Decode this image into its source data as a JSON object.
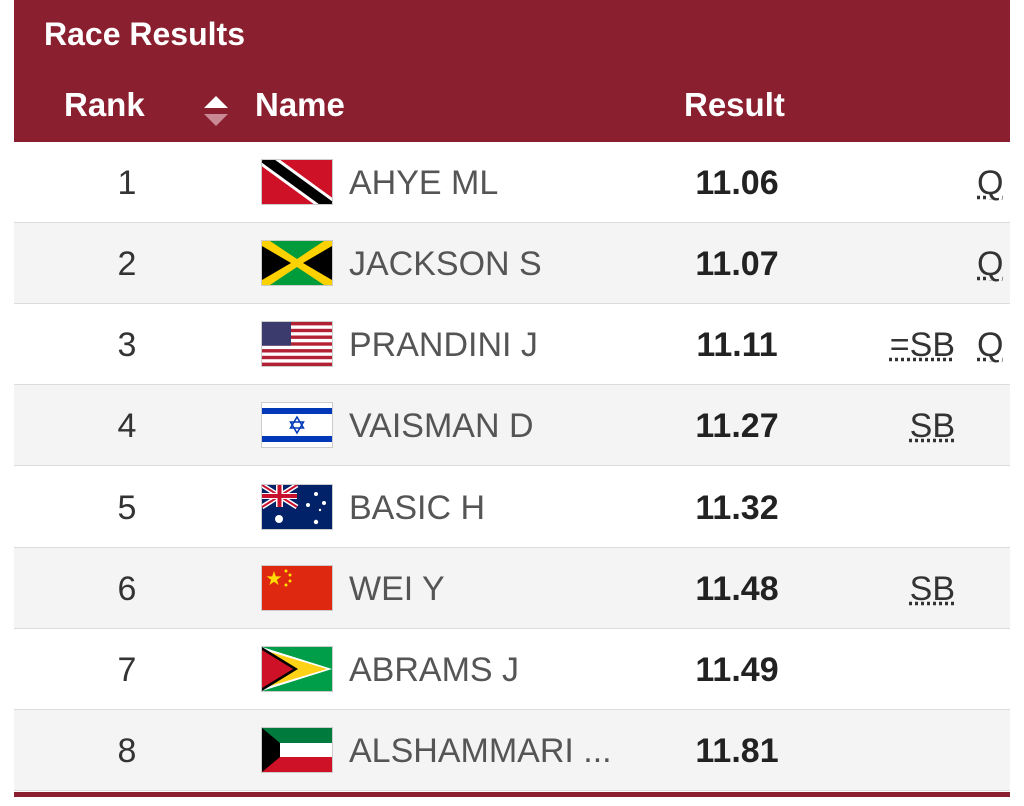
{
  "header": {
    "title": "Race Results",
    "columns": {
      "rank": "Rank",
      "name": "Name",
      "result": "Result"
    }
  },
  "table": {
    "rows": [
      {
        "rank": "1",
        "name": "AHYE ML",
        "result": "11.06",
        "qualifier": "Q"
      },
      {
        "rank": "2",
        "name": "JACKSON S",
        "result": "11.07",
        "qualifier": "Q"
      },
      {
        "rank": "3",
        "name": "PRANDINI J",
        "result": "11.11",
        "record": "=SB",
        "qualifier": "Q"
      },
      {
        "rank": "4",
        "name": "VAISMAN D",
        "result": "11.27",
        "record": "SB"
      },
      {
        "rank": "5",
        "name": "BASIC H",
        "result": "11.32"
      },
      {
        "rank": "6",
        "name": "WEI Y",
        "result": "11.48",
        "record": "SB"
      },
      {
        "rank": "7",
        "name": "ABRAMS J",
        "result": "11.49"
      },
      {
        "rank": "8",
        "name": "ALSHAMMARI ...",
        "result": "11.81"
      }
    ]
  }
}
